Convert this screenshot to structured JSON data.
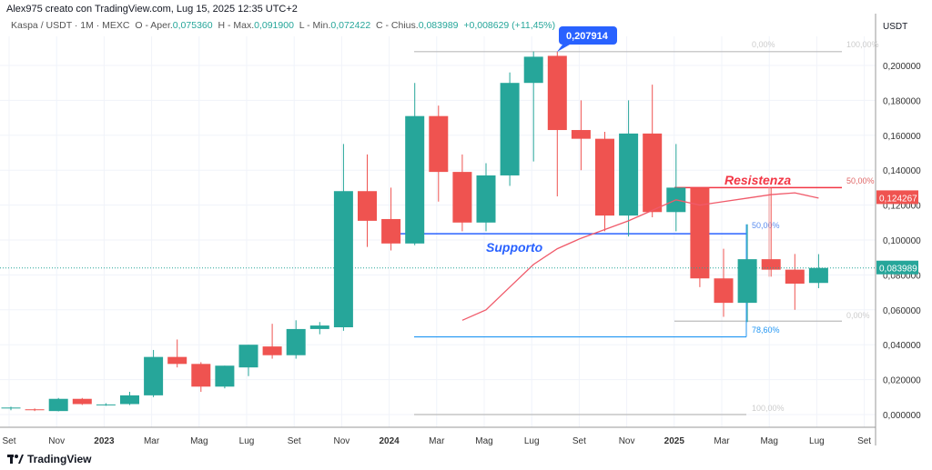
{
  "header": {
    "attribution": "Alex975 creato con TradingView.com, Lug 15, 2025 12:35 UTC+2"
  },
  "legend": {
    "symbol": "Kaspa / USDT · 1M · MEXC",
    "o_label": "O - Aper.",
    "o": "0,075360",
    "h_label": "H - Max.",
    "h": "0,091900",
    "l_label": "L - Min.",
    "l": "0,072422",
    "c_label": "C - Chius.",
    "c": "0,083989",
    "change": "+0,008629 (+11,45%)"
  },
  "axis": {
    "currency": "USDT",
    "y_ticks": [
      "0,000000",
      "0,020000",
      "0,040000",
      "0,060000",
      "0,080000",
      "0,100000",
      "0,120000",
      "0,140000",
      "0,160000",
      "0,180000",
      "0,200000"
    ],
    "x_ticks": [
      "Set",
      "Nov",
      "2023",
      "Mar",
      "Mag",
      "Lug",
      "Set",
      "Nov",
      "2024",
      "Mar",
      "Mag",
      "Lug",
      "Set",
      "Nov",
      "2025",
      "Mar",
      "Mag",
      "Lug",
      "Set"
    ],
    "last_price": "0,083989",
    "ma_price": "0,124267",
    "high_callout": "0,207914"
  },
  "colors": {
    "up": "#26a69a",
    "down": "#ef5350",
    "support": "#2962ff",
    "resist": "#f23645"
  },
  "annotations": {
    "support": "Supporto",
    "resistance": "Resistenza",
    "fib_top_0": "0,00%",
    "fib_top_100": "100,00%",
    "fib_50_red": "50,00%",
    "fib_50_blue": "50,00%",
    "fib_low_0": "0,00%",
    "fib_786": "78,60%",
    "fib_100": "100,00%"
  },
  "chart_data": {
    "type": "candlestick",
    "interval": "1M",
    "ylim": [
      -0.012,
      0.225
    ],
    "candles": [
      [
        0.0035,
        0.0045,
        0.0025,
        0.004
      ],
      [
        0.003,
        0.0035,
        0.002,
        0.0025
      ],
      [
        0.002,
        0.0095,
        0.0018,
        0.009
      ],
      [
        0.009,
        0.0095,
        0.0055,
        0.006
      ],
      [
        0.0055,
        0.0065,
        0.005,
        0.0058
      ],
      [
        0.006,
        0.013,
        0.0055,
        0.011
      ],
      [
        0.011,
        0.037,
        0.01,
        0.033
      ],
      [
        0.033,
        0.043,
        0.027,
        0.029
      ],
      [
        0.029,
        0.03,
        0.013,
        0.016
      ],
      [
        0.016,
        0.028,
        0.015,
        0.028
      ],
      [
        0.027,
        0.04,
        0.022,
        0.04
      ],
      [
        0.039,
        0.052,
        0.032,
        0.034
      ],
      [
        0.034,
        0.054,
        0.032,
        0.049
      ],
      [
        0.049,
        0.053,
        0.046,
        0.051
      ],
      [
        0.05,
        0.155,
        0.048,
        0.128
      ],
      [
        0.128,
        0.149,
        0.096,
        0.111
      ],
      [
        0.112,
        0.13,
        0.094,
        0.098
      ],
      [
        0.098,
        0.19,
        0.097,
        0.171
      ],
      [
        0.171,
        0.177,
        0.122,
        0.139
      ],
      [
        0.139,
        0.149,
        0.105,
        0.11
      ],
      [
        0.11,
        0.144,
        0.105,
        0.137
      ],
      [
        0.137,
        0.196,
        0.131,
        0.19
      ],
      [
        0.19,
        0.208,
        0.145,
        0.205
      ],
      [
        0.2055,
        0.2079,
        0.125,
        0.163
      ],
      [
        0.163,
        0.18,
        0.14,
        0.158
      ],
      [
        0.158,
        0.162,
        0.105,
        0.114
      ],
      [
        0.114,
        0.18,
        0.102,
        0.161
      ],
      [
        0.161,
        0.189,
        0.113,
        0.116
      ],
      [
        0.116,
        0.155,
        0.105,
        0.13
      ],
      [
        0.13,
        0.13,
        0.073,
        0.078
      ],
      [
        0.078,
        0.095,
        0.056,
        0.064
      ],
      [
        0.064,
        0.109,
        0.053,
        0.089
      ],
      [
        0.089,
        0.13,
        0.079,
        0.083
      ],
      [
        0.083,
        0.092,
        0.06,
        0.075
      ],
      [
        0.0754,
        0.0919,
        0.0724,
        0.084
      ]
    ],
    "ma": [
      null,
      null,
      null,
      null,
      null,
      null,
      null,
      null,
      null,
      null,
      null,
      null,
      null,
      null,
      null,
      null,
      null,
      null,
      null,
      0.054,
      0.06,
      0.073,
      0.086,
      0.095,
      0.101,
      0.106,
      0.111,
      0.117,
      0.123,
      0.12,
      0.122,
      0.124,
      0.126,
      0.127,
      0.124
    ]
  }
}
